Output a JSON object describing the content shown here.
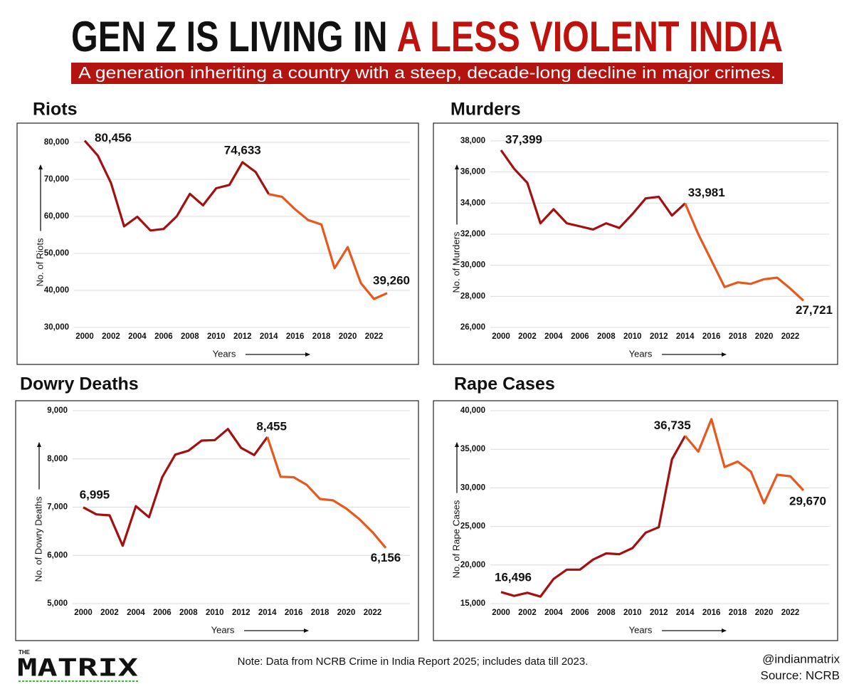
{
  "header": {
    "title": "GEN Z IS LIVING IN",
    "title_highlight": "A LESS VIOLENT INDIA",
    "subtitle": "A generation inheriting a country with a steep, decade-long decline in major crimes."
  },
  "chart_data": [
    {
      "type": "line",
      "title": "Riots",
      "y_label": "No. of Riots",
      "x_label": "Years",
      "x": [
        2000,
        2001,
        2002,
        2003,
        2004,
        2005,
        2006,
        2007,
        2008,
        2009,
        2010,
        2011,
        2012,
        2013,
        2014,
        2015,
        2016,
        2017,
        2018,
        2019,
        2020,
        2021,
        2022,
        2023
      ],
      "values": [
        80456,
        76400,
        69000,
        57300,
        59900,
        56200,
        56600,
        60000,
        66100,
        63000,
        67600,
        68500,
        74633,
        72000,
        66000,
        65300,
        61900,
        59000,
        57800,
        46000,
        51700,
        42000,
        37700,
        39260
      ],
      "value_labels": [
        "80,456",
        null,
        null,
        null,
        null,
        null,
        null,
        null,
        null,
        null,
        null,
        null,
        "74,633",
        null,
        null,
        null,
        null,
        null,
        null,
        null,
        null,
        null,
        null,
        "39,260"
      ],
      "colors": [
        "#a31010",
        "#e8581c"
      ],
      "color_split_x": 2014,
      "xlim": [
        2000,
        2023
      ],
      "xticks": [
        2000,
        2002,
        2004,
        2006,
        2008,
        2010,
        2012,
        2014,
        2016,
        2018,
        2020,
        2022
      ],
      "ylim": [
        30000,
        82500
      ],
      "yticks": [
        {
          "value": 30000,
          "label": "30,000"
        },
        {
          "value": 40000,
          "label": "40,000"
        },
        {
          "value": 50000,
          "label": "50,000"
        },
        {
          "value": 60000,
          "label": "60,000"
        },
        {
          "value": 70000,
          "label": "70,000"
        },
        {
          "value": 80000,
          "label": "80,000"
        }
      ],
      "grid": true
    },
    {
      "type": "line",
      "title": "Murders",
      "y_label": "No. of Murders",
      "x_label": "Years",
      "x": [
        2000,
        2001,
        2002,
        2003,
        2004,
        2005,
        2006,
        2007,
        2008,
        2009,
        2010,
        2011,
        2012,
        2013,
        2014,
        2015,
        2016,
        2017,
        2018,
        2019,
        2020,
        2021,
        2022,
        2023
      ],
      "values": [
        37399,
        36200,
        35300,
        32700,
        33600,
        32700,
        32500,
        32300,
        32700,
        32400,
        33300,
        34300,
        34400,
        33200,
        33981,
        32000,
        30300,
        28600,
        28900,
        28800,
        29100,
        29200,
        28500,
        27721
      ],
      "value_labels": [
        "37,399",
        null,
        null,
        null,
        null,
        null,
        null,
        null,
        null,
        null,
        null,
        null,
        null,
        null,
        "33,981",
        null,
        null,
        null,
        null,
        null,
        null,
        null,
        null,
        "27,721"
      ],
      "colors": [
        "#a31010",
        "#e8581c"
      ],
      "color_split_x": 2014,
      "xlim": [
        2000,
        2023
      ],
      "xticks": [
        2000,
        2002,
        2004,
        2006,
        2008,
        2010,
        2012,
        2014,
        2016,
        2018,
        2020,
        2022
      ],
      "ylim": [
        26000,
        38500
      ],
      "yticks": [
        {
          "value": 26000,
          "label": "26,000"
        },
        {
          "value": 28000,
          "label": "28,000"
        },
        {
          "value": 30000,
          "label": "30,000"
        },
        {
          "value": 32000,
          "label": "32,000"
        },
        {
          "value": 34000,
          "label": "34,000"
        },
        {
          "value": 36000,
          "label": "36,000"
        },
        {
          "value": 38000,
          "label": "38,000"
        }
      ],
      "grid": true
    },
    {
      "type": "line",
      "title": "Dowry Deaths",
      "y_label": "No. of Dowry Deaths",
      "x_label": "Years",
      "x": [
        2000,
        2001,
        2002,
        2003,
        2004,
        2005,
        2006,
        2007,
        2008,
        2009,
        2010,
        2011,
        2012,
        2013,
        2014,
        2015,
        2016,
        2017,
        2018,
        2019,
        2020,
        2021,
        2022,
        2023
      ],
      "values": [
        6995,
        6850,
        6830,
        6200,
        7020,
        6790,
        7620,
        8090,
        8170,
        8380,
        8390,
        8620,
        8230,
        8080,
        8455,
        7630,
        7620,
        7460,
        7170,
        7140,
        6970,
        6750,
        6480,
        6156
      ],
      "value_labels": [
        "6,995",
        null,
        null,
        null,
        null,
        null,
        null,
        null,
        null,
        null,
        null,
        null,
        null,
        null,
        "8,455",
        null,
        null,
        null,
        null,
        null,
        null,
        null,
        null,
        "6,156"
      ],
      "colors": [
        "#a31010",
        "#e8581c"
      ],
      "color_split_x": 2014,
      "xlim": [
        2000,
        2023
      ],
      "xticks": [
        2000,
        2002,
        2004,
        2006,
        2008,
        2010,
        2012,
        2014,
        2016,
        2018,
        2020,
        2022
      ],
      "ylim": [
        5000,
        9000
      ],
      "yticks": [
        {
          "value": 5000,
          "label": "5,000"
        },
        {
          "value": 6000,
          "label": "6,000"
        },
        {
          "value": 7000,
          "label": "7,000"
        },
        {
          "value": 8000,
          "label": "8,000"
        },
        {
          "value": 9000,
          "label": "9,000"
        }
      ],
      "grid": true
    },
    {
      "type": "line",
      "title": "Rape Cases",
      "y_label": "No. of Rape Cases",
      "x_label": "Years",
      "x": [
        2000,
        2001,
        2002,
        2003,
        2004,
        2005,
        2006,
        2007,
        2008,
        2009,
        2010,
        2011,
        2012,
        2013,
        2014,
        2015,
        2016,
        2017,
        2018,
        2019,
        2020,
        2021,
        2022,
        2023
      ],
      "values": [
        16496,
        16000,
        16400,
        15900,
        18200,
        19400,
        19400,
        20700,
        21500,
        21400,
        22200,
        24200,
        24900,
        33700,
        36735,
        34700,
        38900,
        32700,
        33400,
        32100,
        28000,
        31700,
        31500,
        29670
      ],
      "value_labels": [
        "16,496",
        null,
        null,
        null,
        null,
        null,
        null,
        null,
        null,
        null,
        null,
        null,
        null,
        null,
        "36,735",
        null,
        null,
        null,
        null,
        null,
        null,
        null,
        null,
        "29,670"
      ],
      "colors": [
        "#a31010",
        "#e8581c"
      ],
      "color_split_x": 2014,
      "xlim": [
        2000,
        2023
      ],
      "xticks": [
        2000,
        2002,
        2004,
        2006,
        2008,
        2010,
        2012,
        2014,
        2016,
        2018,
        2020,
        2022
      ],
      "ylim": [
        15000,
        40000
      ],
      "yticks": [
        {
          "value": 15000,
          "label": "15,000"
        },
        {
          "value": 20000,
          "label": "20,000"
        },
        {
          "value": 25000,
          "label": "25,000"
        },
        {
          "value": 30000,
          "label": "30,000"
        },
        {
          "value": 35000,
          "label": "35,000"
        },
        {
          "value": 40000,
          "label": "40,000"
        }
      ],
      "grid": true
    }
  ],
  "footer": {
    "logo_small": "THE",
    "logo": "MATRIX",
    "note": "Note: Data from NCRB Crime in India Report 2025; includes data till 2023.",
    "handle": "@indianmatrix",
    "source": "Source: NCRB"
  }
}
